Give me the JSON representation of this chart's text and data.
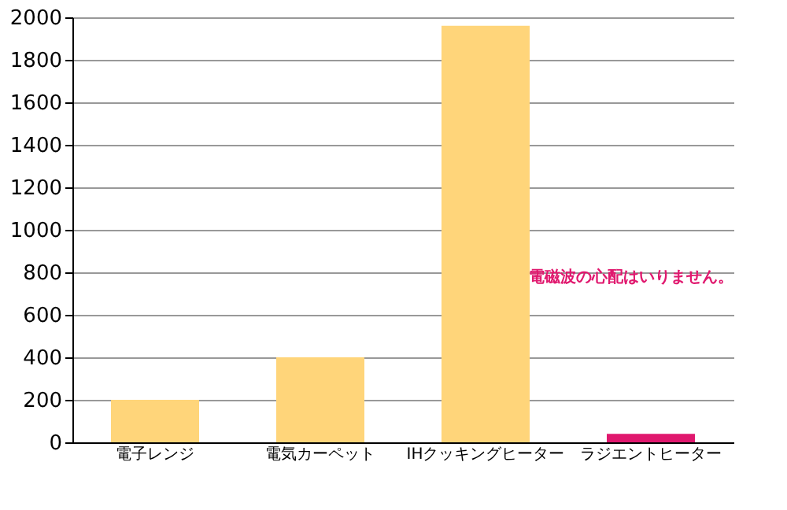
{
  "chart_data": {
    "type": "bar",
    "categories": [
      "電子レンジ",
      "電気カーペット",
      "IHクッキングヒーター",
      "ラジエントヒーター"
    ],
    "values": [
      200,
      400,
      1960,
      40
    ],
    "colors": [
      "#ffd57a",
      "#ffd57a",
      "#ffd57a",
      "#e0186e"
    ],
    "ylim": [
      0,
      2000
    ],
    "yticks": [
      0,
      200,
      400,
      600,
      800,
      1000,
      1200,
      1400,
      1600,
      1800,
      2000
    ],
    "grid": "y",
    "annotations": [
      "電磁波の心配はいりません。"
    ]
  }
}
